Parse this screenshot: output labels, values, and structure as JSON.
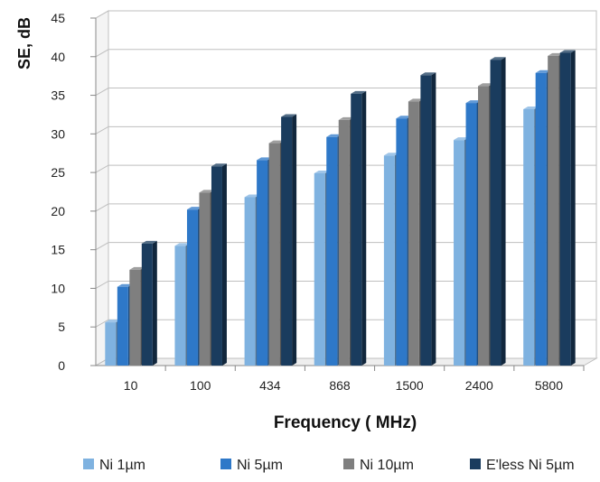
{
  "chart_data": {
    "type": "bar",
    "style": "3d-clustered-column",
    "title": "",
    "xlabel": "Frequency ( MHz)",
    "ylabel": "SE, dB",
    "categories": [
      "10",
      "100",
      "434",
      "868",
      "1500",
      "2400",
      "5800"
    ],
    "ylim": [
      0,
      45
    ],
    "yticks": [
      0,
      5,
      10,
      15,
      20,
      25,
      30,
      35,
      40,
      45
    ],
    "grid": true,
    "legend_position": "bottom",
    "series": [
      {
        "name": "Ni 1µm",
        "color": "#7fb2e0",
        "values": [
          5.6,
          15.5,
          21.8,
          24.9,
          27.2,
          29.2,
          33.2
        ]
      },
      {
        "name": "Ni 5µm",
        "color": "#2e78c8",
        "values": [
          10.2,
          20.2,
          26.6,
          29.6,
          32.0,
          34.0,
          37.9
        ]
      },
      {
        "name": "Ni 10µm",
        "color": "#7f7f7f",
        "values": [
          12.4,
          22.4,
          28.8,
          31.8,
          34.2,
          36.2,
          40.1
        ]
      },
      {
        "name": "E'less Ni 5µm",
        "color": "#1a3c5e",
        "values": [
          15.8,
          25.8,
          32.2,
          35.2,
          37.6,
          39.6,
          40.5
        ]
      }
    ]
  }
}
